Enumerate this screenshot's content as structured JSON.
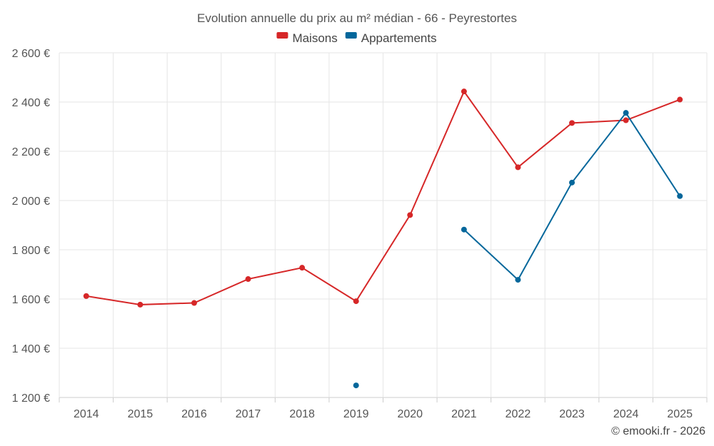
{
  "chart_data": {
    "type": "line",
    "title": "Evolution annuelle du prix au m² médian - 66 - Peyrestortes",
    "x": [
      "2014",
      "2015",
      "2016",
      "2017",
      "2018",
      "2019",
      "2020",
      "2021",
      "2022",
      "2023",
      "2024",
      "2025"
    ],
    "ylim": [
      1200,
      2600
    ],
    "yticks": [
      1200,
      1400,
      1600,
      1800,
      2000,
      2200,
      2400,
      2600
    ],
    "ytick_labels": [
      "1 200 €",
      "1 400 €",
      "1 600 €",
      "1 800 €",
      "2 000 €",
      "2 200 €",
      "2 400 €",
      "2 600 €"
    ],
    "grid": true,
    "legend_position": "top-center",
    "series": [
      {
        "name": "Maisons",
        "color": "#d62728",
        "values": [
          1612,
          1577,
          1584,
          1681,
          1727,
          1591,
          1941,
          2443,
          2135,
          2315,
          2326,
          2410
        ]
      },
      {
        "name": "Appartements",
        "color": "#04679b",
        "values": [
          null,
          null,
          null,
          null,
          null,
          1249,
          null,
          1882,
          1678,
          2073,
          2356,
          2018
        ]
      }
    ]
  },
  "credit": "© emooki.fr - 2026"
}
